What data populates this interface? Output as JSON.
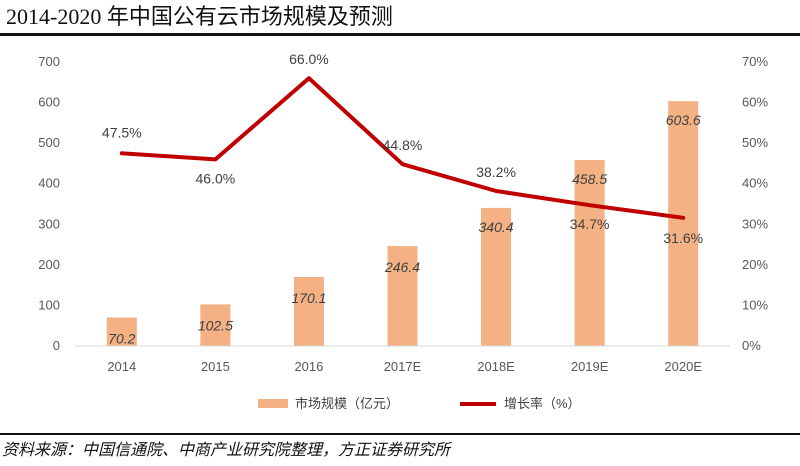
{
  "title": "2014-2020 年中国公有云市场规模及预测",
  "source": "资料来源：中国信通院、中商产业研究院整理，方正证券研究所",
  "chart_data": {
    "type": "bar+line",
    "title": "2014-2020 年中国公有云市场规模及预测",
    "categories": [
      "2014",
      "2015",
      "2016",
      "2017E",
      "2018E",
      "2019E",
      "2020E"
    ],
    "series": [
      {
        "name": "市场规模（亿元）",
        "type": "bar",
        "axis": "left",
        "values": [
          70.2,
          102.5,
          170.1,
          246.4,
          340.4,
          458.5,
          603.6
        ],
        "labels": [
          "70.2",
          "102.5",
          "170.1",
          "246.4",
          "340.4",
          "458.5",
          "603.6"
        ],
        "color": "#F4B183"
      },
      {
        "name": "增长率（%）",
        "type": "line",
        "axis": "right",
        "values": [
          47.5,
          46.0,
          66.0,
          44.8,
          38.2,
          34.7,
          31.6
        ],
        "labels": [
          "47.5%",
          "46.0%",
          "66.0%",
          "44.8%",
          "38.2%",
          "34.7%",
          "31.6%"
        ],
        "color": "#C00000"
      }
    ],
    "yleft": {
      "lim": [
        0,
        700
      ],
      "ticks": [
        "0",
        "100",
        "200",
        "300",
        "400",
        "500",
        "600",
        "700"
      ]
    },
    "yright": {
      "lim": [
        0,
        70
      ],
      "ticks": [
        "0%",
        "10%",
        "20%",
        "30%",
        "40%",
        "50%",
        "60%",
        "70%"
      ]
    },
    "legend": {
      "position": "bottom"
    },
    "grid": false
  }
}
